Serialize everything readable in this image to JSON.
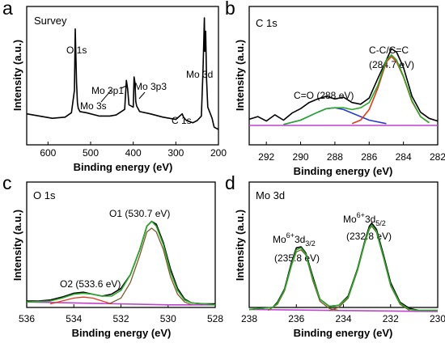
{
  "figure": {
    "xlabel": "Binding energy (eV)",
    "ylabel": "Intensity (a.u.)",
    "colors": {
      "raw": "#000000",
      "envelope": "#2aa82a",
      "background": "#c040d0",
      "fit_red": "#e03a1a",
      "fit_blue": "#2a3ad0",
      "fit_brown": "#7a5a2a"
    }
  },
  "chart_data": [
    {
      "letter": "a",
      "panel_label": "Survey",
      "type": "line",
      "xlabel": "Binding energy (eV)",
      "ylabel": "Intensity (a.u.)",
      "xlim": [
        650,
        200
      ],
      "x_reversed": true,
      "xticks": [
        "600",
        "500",
        "400",
        "300",
        "200"
      ],
      "series": [
        {
          "x": [
            650,
            620,
            590,
            560,
            545,
            538,
            536,
            533,
            531,
            529,
            525,
            510,
            480,
            455,
            440,
            420,
            416,
            413,
            410,
            400,
            398,
            396,
            394,
            392,
            385,
            360,
            330,
            300,
            285,
            282,
            275,
            260,
            250,
            240,
            236,
            233,
            232,
            230,
            228,
            225,
            220,
            215,
            212,
            210,
            200
          ],
          "y": [
            0.14,
            0.12,
            0.1,
            0.11,
            0.15,
            0.35,
            0.9,
            0.42,
            0.24,
            0.19,
            0.16,
            0.15,
            0.12,
            0.12,
            0.13,
            0.18,
            0.44,
            0.36,
            0.22,
            0.2,
            0.47,
            0.42,
            0.25,
            0.21,
            0.16,
            0.14,
            0.11,
            0.09,
            0.14,
            0.11,
            0.08,
            0.06,
            0.08,
            0.12,
            0.55,
            1.0,
            0.7,
            0.88,
            0.45,
            0.2,
            0.15,
            0.1,
            0.05,
            0.02,
            0.0
          ]
        }
      ],
      "annotations": [
        {
          "text": "O 1s",
          "x": 531
        },
        {
          "text": "Mo 3s",
          "x": 505
        },
        {
          "text": "Mo 3p1",
          "x": 414
        },
        {
          "text": "Mo 3p3",
          "x": 396
        },
        {
          "text": "C 1s",
          "x": 285
        },
        {
          "text": "Mo 3d",
          "x": 232
        }
      ]
    },
    {
      "letter": "b",
      "panel_label": "C 1s",
      "type": "line",
      "xlabel": "Binding energy (eV)",
      "xlim": [
        293,
        282
      ],
      "x_reversed": true,
      "xticks": [
        "292",
        "290",
        "288",
        "286",
        "284",
        "282"
      ],
      "series": [
        {
          "name": "raw",
          "x": [
            293,
            292.5,
            292,
            291.5,
            291,
            290.5,
            290,
            289.5,
            289,
            288.5,
            288,
            287.5,
            287,
            286.5,
            286,
            285.5,
            285,
            284.7,
            284.4,
            284,
            283.5,
            283,
            282.5,
            282
          ],
          "y": [
            0.07,
            0.1,
            0.05,
            0.12,
            0.06,
            0.14,
            0.19,
            0.26,
            0.3,
            0.33,
            0.3,
            0.32,
            0.26,
            0.24,
            0.31,
            0.53,
            0.74,
            0.87,
            0.83,
            0.66,
            0.33,
            0.15,
            0.08,
            0.05
          ]
        },
        {
          "name": "C-C/C=C",
          "x": [
            287,
            286.5,
            286,
            285.5,
            285,
            284.7,
            284.4,
            284,
            283.5,
            283,
            282.5
          ],
          "y": [
            0.02,
            0.06,
            0.18,
            0.42,
            0.72,
            0.78,
            0.72,
            0.55,
            0.27,
            0.1,
            0.03
          ]
        },
        {
          "name": "C=O",
          "x": [
            291,
            290,
            289,
            288.5,
            288,
            287.5,
            287,
            286,
            285
          ],
          "y": [
            0.01,
            0.06,
            0.15,
            0.19,
            0.2,
            0.18,
            0.14,
            0.06,
            0.02
          ]
        },
        {
          "name": "envelope",
          "x": [
            291,
            290,
            289,
            288.5,
            288,
            287.5,
            287,
            286.5,
            286,
            285.5,
            285,
            284.7,
            284.4,
            284,
            283.5,
            283,
            282.5
          ],
          "y": [
            0.01,
            0.06,
            0.15,
            0.19,
            0.2,
            0.2,
            0.18,
            0.2,
            0.26,
            0.45,
            0.74,
            0.8,
            0.74,
            0.56,
            0.28,
            0.1,
            0.03
          ]
        },
        {
          "name": "background",
          "x": [
            293,
            282
          ],
          "y": [
            0.0,
            0.0
          ]
        }
      ],
      "annotations": [
        {
          "text": "C-C/C=C",
          "x": 284.7
        },
        {
          "text": "(284.7 eV)",
          "x": 284.7
        },
        {
          "text": "C=O (288 eV)",
          "x": 288
        }
      ]
    },
    {
      "letter": "c",
      "panel_label": "O 1s",
      "type": "line",
      "xlabel": "Binding energy (eV)",
      "ylabel": "Intensity (a.u.)",
      "xlim": [
        536,
        528
      ],
      "x_reversed": true,
      "xticks": [
        "536",
        "534",
        "532",
        "530",
        "528"
      ],
      "series": [
        {
          "name": "raw",
          "x": [
            536,
            535.5,
            535,
            534.5,
            534,
            533.6,
            533.2,
            532.8,
            532.4,
            532,
            531.6,
            531.2,
            530.9,
            530.7,
            530.5,
            530.2,
            529.9,
            529.6,
            529.3,
            529,
            528.5,
            528
          ],
          "y": [
            0.05,
            0.05,
            0.06,
            0.09,
            0.13,
            0.14,
            0.12,
            0.1,
            0.12,
            0.18,
            0.32,
            0.58,
            0.82,
            0.87,
            0.84,
            0.65,
            0.38,
            0.18,
            0.07,
            0.03,
            0.02,
            0.02
          ]
        },
        {
          "name": "O1",
          "x": [
            532.5,
            532,
            531.6,
            531.2,
            530.9,
            530.7,
            530.5,
            530.2,
            529.9,
            529.6,
            529.3,
            529
          ],
          "y": [
            0.02,
            0.08,
            0.24,
            0.52,
            0.76,
            0.8,
            0.76,
            0.58,
            0.3,
            0.12,
            0.04,
            0.01
          ]
        },
        {
          "name": "O2",
          "x": [
            535,
            534.5,
            534,
            533.6,
            533.2,
            532.8,
            532.4
          ],
          "y": [
            0.02,
            0.05,
            0.08,
            0.09,
            0.08,
            0.05,
            0.02
          ]
        },
        {
          "name": "envelope",
          "x": [
            536,
            535,
            534.5,
            534,
            533.6,
            533.2,
            532.8,
            532.4,
            532,
            531.6,
            531.2,
            530.9,
            530.7,
            530.5,
            530.2,
            529.9,
            529.6,
            529.3,
            529,
            528
          ],
          "y": [
            0.04,
            0.05,
            0.08,
            0.12,
            0.13,
            0.12,
            0.1,
            0.1,
            0.16,
            0.32,
            0.58,
            0.82,
            0.87,
            0.82,
            0.63,
            0.35,
            0.16,
            0.06,
            0.03,
            0.01
          ]
        },
        {
          "name": "background",
          "x": [
            536,
            530,
            528
          ],
          "y": [
            0.04,
            0.01,
            0.01
          ]
        }
      ],
      "annotations": [
        {
          "text": "O1 (530.7 eV)",
          "x": 530.7
        },
        {
          "text": "O2 (533.6 eV)",
          "x": 533.6
        }
      ]
    },
    {
      "letter": "d",
      "panel_label": "Mo 3d",
      "type": "line",
      "xlabel": "Binding energy (eV)",
      "ylabel": "Intensity (a.u.)",
      "xlim": [
        238,
        230
      ],
      "x_reversed": true,
      "xticks": [
        "238",
        "236",
        "234",
        "232",
        "230"
      ],
      "series": [
        {
          "name": "raw",
          "x": [
            238,
            237,
            236.8,
            236.5,
            236.2,
            236,
            235.8,
            235.6,
            235.3,
            235,
            234.6,
            234.2,
            233.8,
            233.4,
            233.1,
            232.9,
            232.8,
            232.6,
            232.3,
            232,
            231.6,
            231.2,
            230.8,
            230
          ],
          "y": [
            0.02,
            0.04,
            0.09,
            0.22,
            0.48,
            0.62,
            0.63,
            0.57,
            0.34,
            0.12,
            0.05,
            0.06,
            0.15,
            0.42,
            0.68,
            0.83,
            0.86,
            0.8,
            0.55,
            0.28,
            0.09,
            0.03,
            0.01,
            0.01
          ]
        },
        {
          "name": "Mo 3d3/2",
          "x": [
            237.2,
            236.8,
            236.5,
            236.2,
            236,
            235.8,
            235.6,
            235.3,
            235,
            234.6,
            234.2
          ],
          "y": [
            0.01,
            0.07,
            0.2,
            0.45,
            0.58,
            0.6,
            0.55,
            0.3,
            0.1,
            0.03,
            0.01
          ]
        },
        {
          "name": "Mo 3d5/2",
          "x": [
            234.6,
            234.2,
            233.8,
            233.4,
            233.1,
            232.9,
            232.8,
            232.6,
            232.3,
            232,
            231.6,
            231.2
          ],
          "y": [
            0.01,
            0.04,
            0.13,
            0.4,
            0.66,
            0.8,
            0.83,
            0.77,
            0.52,
            0.25,
            0.07,
            0.01
          ]
        },
        {
          "name": "envelope",
          "x": [
            238,
            237,
            236.8,
            236.5,
            236.2,
            236,
            235.8,
            235.6,
            235.3,
            235,
            234.6,
            234.2,
            233.8,
            233.4,
            233.1,
            232.9,
            232.8,
            232.6,
            232.3,
            232,
            231.6,
            231.2,
            230.8,
            230
          ],
          "y": [
            0.02,
            0.04,
            0.08,
            0.21,
            0.46,
            0.6,
            0.62,
            0.56,
            0.32,
            0.12,
            0.05,
            0.06,
            0.14,
            0.41,
            0.67,
            0.81,
            0.84,
            0.78,
            0.53,
            0.26,
            0.08,
            0.02,
            0.01,
            0.01
          ]
        },
        {
          "name": "background",
          "x": [
            238,
            230
          ],
          "y": [
            0.02,
            0.0
          ]
        }
      ],
      "annotations": [
        {
          "text": "(235.8 eV)",
          "x": 235.8
        },
        {
          "text": "(232.8 eV)",
          "x": 232.8
        }
      ]
    }
  ]
}
